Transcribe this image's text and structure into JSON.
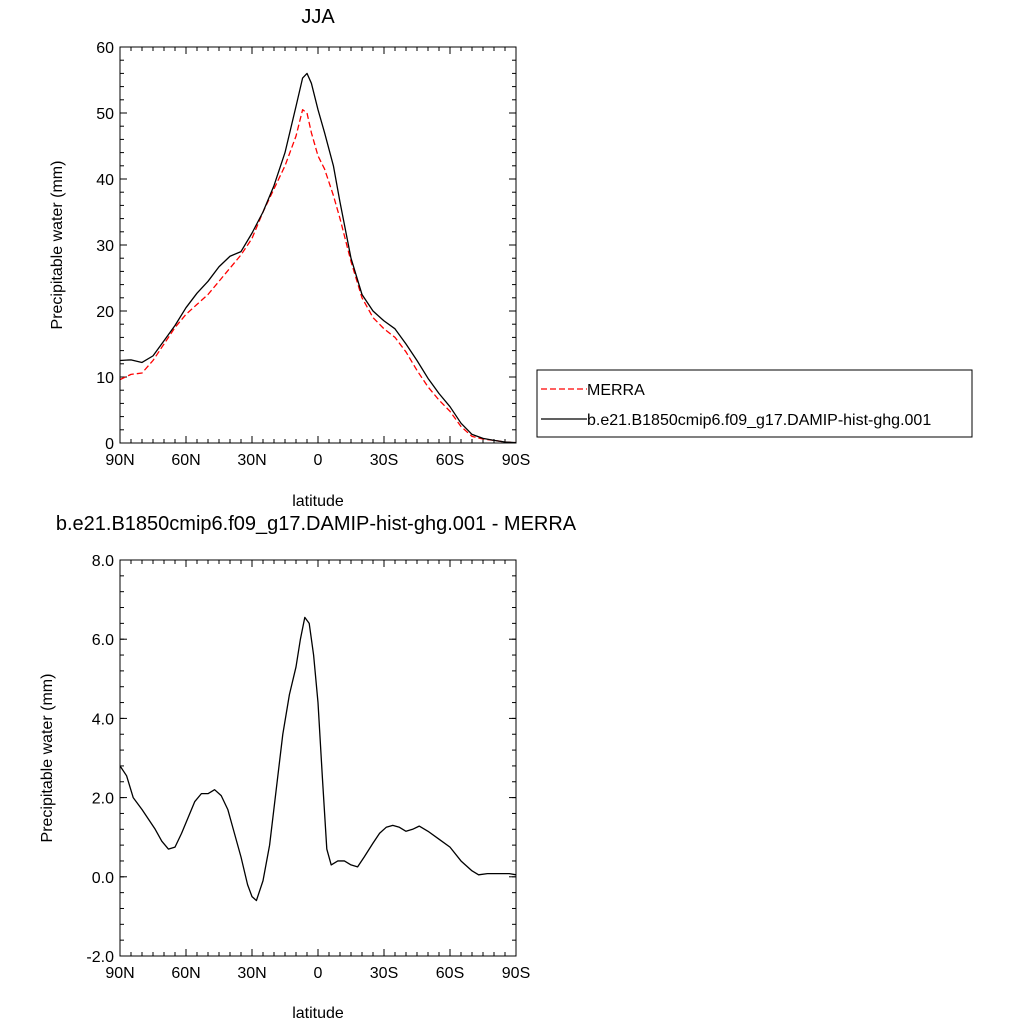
{
  "chart_data": [
    {
      "type": "line",
      "title": "JJA",
      "xlabel": "latitude",
      "ylabel": "Precipitable water (mm)",
      "xlim": [
        90,
        -90
      ],
      "ylim": [
        0,
        60
      ],
      "x_ticks": [
        90,
        60,
        30,
        0,
        -30,
        -60,
        -90
      ],
      "x_tick_labels": [
        "90N",
        "60N",
        "30N",
        "0",
        "30S",
        "60S",
        "90S"
      ],
      "y_ticks": [
        0,
        10,
        20,
        30,
        40,
        50,
        60
      ],
      "y_tick_labels": [
        "0",
        "10",
        "20",
        "30",
        "40",
        "50",
        "60"
      ],
      "grid": false,
      "legend_position": "right",
      "series": [
        {
          "name": "MERRA",
          "color": "#ff0000",
          "style": "dashed",
          "points": [
            [
              90,
              9.6
            ],
            [
              85,
              10.4
            ],
            [
              80,
              10.6
            ],
            [
              75,
              12.5
            ],
            [
              70,
              15
            ],
            [
              65,
              17.5
            ],
            [
              60,
              19.5
            ],
            [
              55,
              21
            ],
            [
              50,
              22.5
            ],
            [
              45,
              24.5
            ],
            [
              40,
              26.5
            ],
            [
              35,
              28.5
            ],
            [
              30,
              31
            ],
            [
              25,
              35
            ],
            [
              20,
              38.5
            ],
            [
              15,
              42
            ],
            [
              10,
              46.5
            ],
            [
              7,
              50.5
            ],
            [
              5,
              50
            ],
            [
              3,
              47
            ],
            [
              0,
              43.5
            ],
            [
              -3,
              41.5
            ],
            [
              -7,
              37.5
            ],
            [
              -10,
              34
            ],
            [
              -15,
              27.5
            ],
            [
              -20,
              22
            ],
            [
              -25,
              19
            ],
            [
              -30,
              17.3
            ],
            [
              -35,
              16
            ],
            [
              -40,
              13.8
            ],
            [
              -45,
              11
            ],
            [
              -50,
              8.5
            ],
            [
              -55,
              6.5
            ],
            [
              -60,
              4.8
            ],
            [
              -65,
              2.5
            ],
            [
              -70,
              1
            ],
            [
              -75,
              0.6
            ],
            [
              -80,
              0.4
            ],
            [
              -85,
              0.15
            ],
            [
              -90,
              0.05
            ]
          ]
        },
        {
          "name": "b.e21.B1850cmip6.f09_g17.DAMIP-hist-ghg.001",
          "color": "#000000",
          "style": "solid",
          "points": [
            [
              90,
              12.5
            ],
            [
              85,
              12.6
            ],
            [
              80,
              12.2
            ],
            [
              75,
              13.2
            ],
            [
              70,
              15.5
            ],
            [
              65,
              17.8
            ],
            [
              60,
              20.5
            ],
            [
              55,
              22.7
            ],
            [
              50,
              24.5
            ],
            [
              45,
              26.7
            ],
            [
              40,
              28.3
            ],
            [
              35,
              29
            ],
            [
              30,
              31.8
            ],
            [
              25,
              35
            ],
            [
              20,
              39
            ],
            [
              15,
              44
            ],
            [
              10,
              51
            ],
            [
              7,
              55.3
            ],
            [
              5,
              56
            ],
            [
              3,
              54.5
            ],
            [
              0,
              50.5
            ],
            [
              -3,
              47
            ],
            [
              -7,
              42
            ],
            [
              -10,
              36.5
            ],
            [
              -15,
              28
            ],
            [
              -20,
              22.5
            ],
            [
              -25,
              20
            ],
            [
              -30,
              18.5
            ],
            [
              -35,
              17.3
            ],
            [
              -40,
              15
            ],
            [
              -45,
              12.5
            ],
            [
              -50,
              9.8
            ],
            [
              -55,
              7.5
            ],
            [
              -60,
              5.5
            ],
            [
              -65,
              3
            ],
            [
              -70,
              1.3
            ],
            [
              -75,
              0.7
            ],
            [
              -80,
              0.4
            ],
            [
              -85,
              0.15
            ],
            [
              -90,
              0.05
            ]
          ]
        }
      ]
    },
    {
      "type": "line",
      "title": "b.e21.B1850cmip6.f09_g17.DAMIP-hist-ghg.001 - MERRA",
      "xlabel": "latitude",
      "ylabel": "Precipitable water (mm)",
      "xlim": [
        90,
        -90
      ],
      "ylim": [
        -2,
        8
      ],
      "x_ticks": [
        90,
        60,
        30,
        0,
        -30,
        -60,
        -90
      ],
      "x_tick_labels": [
        "90N",
        "60N",
        "30N",
        "0",
        "30S",
        "60S",
        "90S"
      ],
      "y_ticks": [
        -2,
        0,
        2,
        4,
        6,
        8
      ],
      "y_tick_labels": [
        "-2.0",
        "0.0",
        "2.0",
        "4.0",
        "6.0",
        "8.0"
      ],
      "grid": false,
      "series": [
        {
          "color": "#000000",
          "style": "solid",
          "points": [
            [
              90,
              2.8
            ],
            [
              87,
              2.55
            ],
            [
              84,
              2.0
            ],
            [
              80,
              1.7
            ],
            [
              77,
              1.45
            ],
            [
              74,
              1.2
            ],
            [
              71,
              0.9
            ],
            [
              68,
              0.7
            ],
            [
              65,
              0.75
            ],
            [
              62,
              1.1
            ],
            [
              59,
              1.5
            ],
            [
              56,
              1.9
            ],
            [
              53,
              2.1
            ],
            [
              50,
              2.1
            ],
            [
              47,
              2.2
            ],
            [
              44,
              2.05
            ],
            [
              41,
              1.7
            ],
            [
              38,
              1.1
            ],
            [
              35,
              0.5
            ],
            [
              32,
              -0.2
            ],
            [
              30,
              -0.5
            ],
            [
              28,
              -0.6
            ],
            [
              25,
              -0.1
            ],
            [
              22,
              0.8
            ],
            [
              19,
              2.2
            ],
            [
              16,
              3.6
            ],
            [
              13,
              4.6
            ],
            [
              10,
              5.3
            ],
            [
              8,
              6.0
            ],
            [
              6,
              6.55
            ],
            [
              4,
              6.4
            ],
            [
              2,
              5.6
            ],
            [
              0,
              4.4
            ],
            [
              -2,
              2.5
            ],
            [
              -4,
              0.7
            ],
            [
              -6,
              0.3
            ],
            [
              -9,
              0.4
            ],
            [
              -12,
              0.4
            ],
            [
              -15,
              0.3
            ],
            [
              -18,
              0.25
            ],
            [
              -21,
              0.5
            ],
            [
              -25,
              0.85
            ],
            [
              -28,
              1.1
            ],
            [
              -31,
              1.25
            ],
            [
              -34,
              1.3
            ],
            [
              -37,
              1.25
            ],
            [
              -40,
              1.15
            ],
            [
              -43,
              1.2
            ],
            [
              -46,
              1.28
            ],
            [
              -50,
              1.15
            ],
            [
              -55,
              0.95
            ],
            [
              -60,
              0.75
            ],
            [
              -65,
              0.4
            ],
            [
              -70,
              0.15
            ],
            [
              -73,
              0.05
            ],
            [
              -77,
              0.08
            ],
            [
              -82,
              0.08
            ],
            [
              -87,
              0.08
            ],
            [
              -90,
              0.05
            ]
          ]
        }
      ]
    }
  ],
  "legend": {
    "entries": [
      "MERRA",
      "b.e21.B1850cmip6.f09_g17.DAMIP-hist-ghg.001"
    ]
  }
}
